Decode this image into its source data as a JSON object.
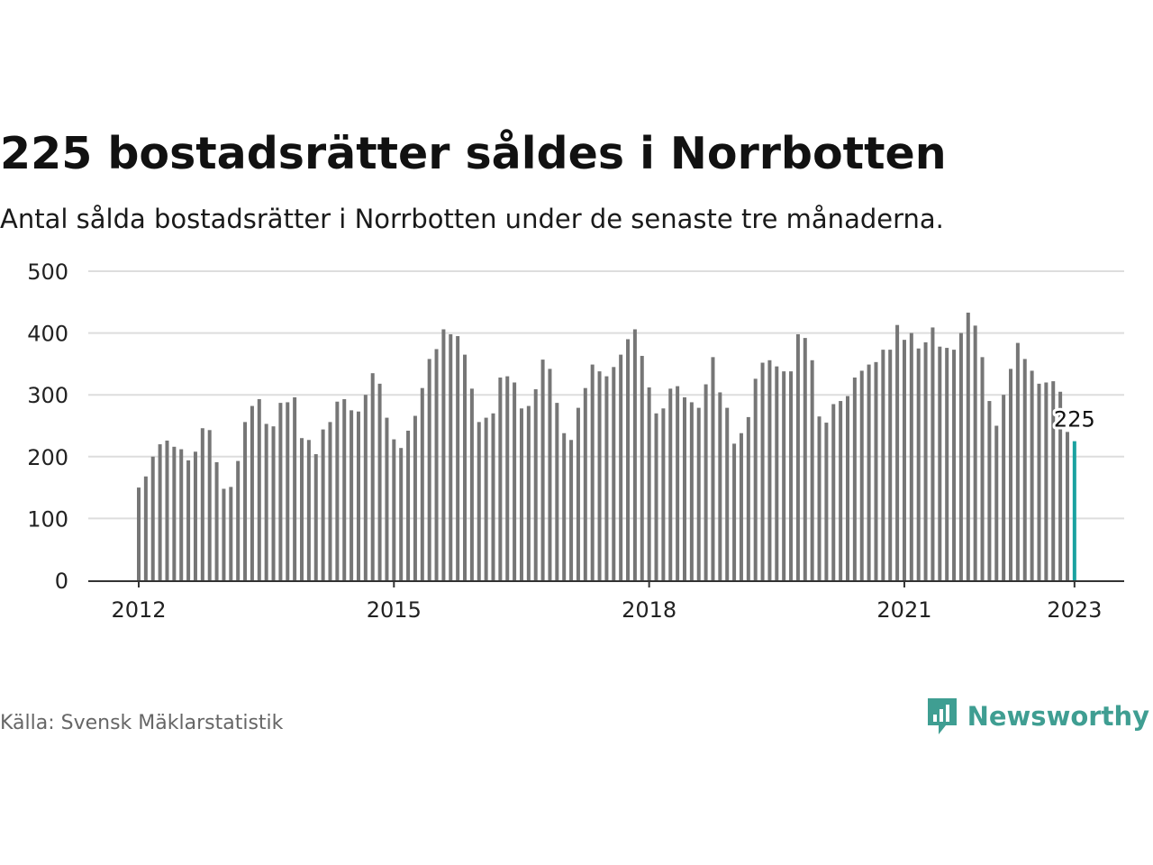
{
  "colors": {
    "bar": "#767676",
    "highlight": "#1aa2a0",
    "grid": "#dddddd",
    "axis": "#333333",
    "brand": "#3f9e92"
  },
  "header": {
    "title": "225 bostadsrätter såldes i Norrbotten",
    "subtitle": "Antal sålda bostadsrätter i Norrbotten under de senaste tre månaderna."
  },
  "footer": {
    "source": "Källa: Svensk Mäklarstatistik",
    "brand": "Newsworthy",
    "brand_icon": "newsworthy-logo-icon"
  },
  "chart_data": {
    "type": "bar",
    "title": "225 bostadsrätter såldes i Norrbotten",
    "subtitle": "Antal sålda bostadsrätter i Norrbotten under de senaste tre månaderna.",
    "xlabel": "",
    "ylabel": "",
    "ylim": [
      0,
      500
    ],
    "yticks": [
      0,
      100,
      200,
      300,
      400,
      500
    ],
    "x_start": "2012-01",
    "x_end": "2023-01",
    "xticks": [
      {
        "label": "2012",
        "index": 0
      },
      {
        "label": "2015",
        "index": 36
      },
      {
        "label": "2018",
        "index": 72
      },
      {
        "label": "2021",
        "index": 108
      },
      {
        "label": "2023",
        "index": 132
      }
    ],
    "grid": true,
    "highlight_index": 132,
    "annotation": {
      "index": 132,
      "text": "225"
    },
    "values": [
      150,
      168,
      200,
      220,
      226,
      216,
      212,
      194,
      208,
      246,
      243,
      191,
      148,
      151,
      193,
      256,
      282,
      293,
      253,
      249,
      287,
      288,
      296,
      230,
      227,
      204,
      244,
      256,
      289,
      293,
      275,
      273,
      300,
      335,
      318,
      263,
      228,
      214,
      242,
      266,
      311,
      358,
      374,
      406,
      398,
      395,
      365,
      310,
      256,
      263,
      270,
      328,
      330,
      320,
      278,
      282,
      309,
      357,
      342,
      287,
      238,
      227,
      279,
      311,
      349,
      338,
      330,
      345,
      365,
      390,
      406,
      363,
      312,
      270,
      278,
      310,
      314,
      296,
      288,
      279,
      317,
      361,
      304,
      279,
      221,
      238,
      264,
      326,
      352,
      356,
      346,
      338,
      338,
      398,
      392,
      356,
      265,
      255,
      285,
      290,
      298,
      328,
      339,
      349,
      353,
      373,
      373,
      413,
      389,
      400,
      375,
      385,
      409,
      378,
      376,
      373,
      400,
      433,
      412,
      361,
      290,
      250,
      300,
      342,
      384,
      358,
      339,
      318,
      320,
      322,
      305,
      240,
      225
    ]
  }
}
